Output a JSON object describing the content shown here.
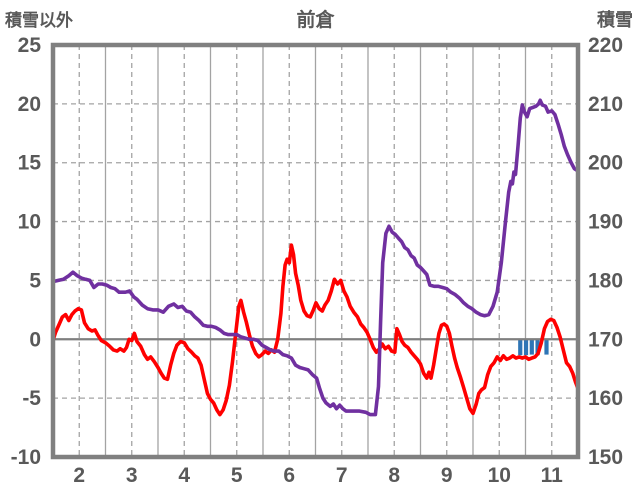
{
  "chart_data": {
    "type": "line",
    "title": "前倉",
    "colors": {
      "background": "#FFFFFF",
      "grid": "#A3A3A3",
      "axis_line": "#808080",
      "zero_line": "#7F7F7F",
      "text": "#595959",
      "series_red": "#FF0000",
      "series_purple": "#7030A0",
      "series_blue": "#2E75B6"
    },
    "left_axis": {
      "label": "積雪以外",
      "min": -10,
      "max": 25,
      "ticks": [
        25,
        20,
        15,
        10,
        5,
        0,
        -5,
        -10
      ],
      "dashed_gridlines": [
        20,
        15,
        10,
        5,
        -5
      ],
      "zero_line": 0
    },
    "right_axis": {
      "label": "積雪",
      "min": 150,
      "max": 220,
      "ticks": [
        220,
        210,
        200,
        190,
        180,
        170,
        160,
        150
      ]
    },
    "x_axis": {
      "min": 1.5,
      "max": 11.5,
      "ticks": [
        2,
        3,
        4,
        5,
        6,
        7,
        8,
        9,
        10,
        11
      ],
      "solid_gridlines": [
        2.5,
        3.5,
        4.5,
        5.5,
        6.5,
        7.5,
        8.5,
        9.5,
        10.5
      ]
    },
    "series": [
      {
        "name": "blue-bars",
        "kind": "bar",
        "axis": "left",
        "color": "#2E75B6",
        "bar_width_units": 0.08,
        "x": [
          10.4,
          10.51,
          10.62,
          10.73,
          10.9
        ],
        "y": [
          -1.35,
          -1.35,
          -1.3,
          -1.35,
          -1.3
        ]
      },
      {
        "name": "積雪以外",
        "kind": "line",
        "axis": "left",
        "color": "#FF0000",
        "x": [
          1.5,
          1.55,
          1.62,
          1.68,
          1.74,
          1.8,
          1.86,
          1.92,
          1.98,
          2.04,
          2.1,
          2.17,
          2.24,
          2.3,
          2.36,
          2.42,
          2.5,
          2.58,
          2.65,
          2.72,
          2.78,
          2.85,
          2.9,
          2.95,
          3.0,
          3.05,
          3.1,
          3.17,
          3.24,
          3.3,
          3.36,
          3.43,
          3.5,
          3.56,
          3.62,
          3.68,
          3.74,
          3.8,
          3.86,
          3.93,
          4.0,
          4.07,
          4.14,
          4.2,
          4.26,
          4.32,
          4.38,
          4.44,
          4.5,
          4.56,
          4.62,
          4.68,
          4.74,
          4.8,
          4.86,
          4.92,
          4.98,
          5.04,
          5.08,
          5.13,
          5.18,
          5.24,
          5.3,
          5.36,
          5.42,
          5.48,
          5.54,
          5.6,
          5.66,
          5.72,
          5.78,
          5.84,
          5.88,
          5.92,
          5.96,
          6.0,
          6.04,
          6.08,
          6.12,
          6.17,
          6.22,
          6.28,
          6.34,
          6.4,
          6.46,
          6.51,
          6.57,
          6.63,
          6.68,
          6.74,
          6.8,
          6.86,
          6.92,
          6.98,
          7.04,
          7.1,
          7.16,
          7.23,
          7.3,
          7.36,
          7.42,
          7.48,
          7.54,
          7.6,
          7.66,
          7.72,
          7.77,
          7.83,
          7.89,
          7.95,
          8.01,
          8.05,
          8.1,
          8.15,
          8.2,
          8.26,
          8.32,
          8.38,
          8.44,
          8.5,
          8.56,
          8.62,
          8.66,
          8.7,
          8.75,
          8.8,
          8.85,
          8.9,
          8.95,
          9.0,
          9.05,
          9.1,
          9.15,
          9.2,
          9.26,
          9.32,
          9.38,
          9.44,
          9.5,
          9.56,
          9.61,
          9.66,
          9.72,
          9.78,
          9.84,
          9.9,
          9.96,
          10.02,
          10.08,
          10.14,
          10.2,
          10.26,
          10.32,
          10.38,
          10.44,
          10.5,
          10.56,
          10.62,
          10.68,
          10.74,
          10.8,
          10.86,
          10.92,
          10.98,
          11.04,
          11.1,
          11.16,
          11.22,
          11.28,
          11.34,
          11.4,
          11.45,
          11.5
        ],
        "y": [
          -0.1,
          0.6,
          1.3,
          1.9,
          2.1,
          1.6,
          2.1,
          2.4,
          2.6,
          2.5,
          1.4,
          0.9,
          0.7,
          0.8,
          0.3,
          -0.1,
          -0.3,
          -0.6,
          -0.9,
          -1.0,
          -0.8,
          -1.0,
          -0.7,
          0.0,
          -0.1,
          0.5,
          -0.2,
          -0.6,
          -1.3,
          -1.7,
          -1.5,
          -1.9,
          -2.4,
          -2.9,
          -3.3,
          -3.4,
          -2.2,
          -1.2,
          -0.5,
          -0.2,
          -0.3,
          -0.8,
          -1.1,
          -1.4,
          -1.6,
          -2.2,
          -3.4,
          -4.6,
          -5.1,
          -5.4,
          -6.0,
          -6.4,
          -6.0,
          -5.2,
          -3.9,
          -1.9,
          0.5,
          2.8,
          3.3,
          2.3,
          1.5,
          0.4,
          -0.6,
          -1.2,
          -1.5,
          -1.3,
          -1.0,
          -1.2,
          -0.9,
          -1.1,
          0.0,
          2.2,
          4.5,
          6.3,
          6.8,
          6.5,
          8.0,
          7.2,
          5.6,
          4.6,
          3.3,
          2.4,
          2.0,
          1.9,
          2.5,
          3.1,
          2.6,
          2.4,
          2.9,
          3.3,
          4.1,
          5.1,
          4.7,
          5.0,
          4.1,
          3.6,
          2.8,
          2.3,
          1.9,
          1.3,
          1.0,
          0.6,
          0.0,
          -0.7,
          -1.1,
          -0.8,
          -0.4,
          -0.8,
          -0.6,
          -1.0,
          -1.1,
          0.9,
          0.4,
          -0.2,
          -0.5,
          -0.7,
          -1.1,
          -1.4,
          -1.7,
          -2.1,
          -2.9,
          -3.3,
          -2.8,
          -3.3,
          -2.2,
          -0.8,
          0.5,
          1.2,
          1.3,
          1.1,
          0.5,
          -0.6,
          -1.6,
          -2.4,
          -3.2,
          -4.1,
          -5.0,
          -5.9,
          -6.3,
          -5.5,
          -4.6,
          -4.3,
          -4.1,
          -3.0,
          -2.3,
          -2.0,
          -1.5,
          -1.8,
          -1.4,
          -1.7,
          -1.6,
          -1.4,
          -1.6,
          -1.5,
          -1.6,
          -1.5,
          -1.7,
          -1.6,
          -1.5,
          -1.2,
          -0.3,
          0.9,
          1.5,
          1.7,
          1.6,
          1.0,
          0.2,
          -0.9,
          -2.0,
          -2.3,
          -2.9,
          -3.6,
          -4.2
        ]
      },
      {
        "name": "積雪",
        "kind": "line",
        "axis": "right",
        "color": "#7030A0",
        "x": [
          1.5,
          1.6,
          1.7,
          1.8,
          1.88,
          1.96,
          2.04,
          2.12,
          2.2,
          2.28,
          2.36,
          2.44,
          2.52,
          2.6,
          2.68,
          2.76,
          2.88,
          2.96,
          3.04,
          3.1,
          3.2,
          3.3,
          3.4,
          3.5,
          3.6,
          3.7,
          3.8,
          3.88,
          3.96,
          4.04,
          4.12,
          4.2,
          4.28,
          4.36,
          4.44,
          4.52,
          4.6,
          4.68,
          4.76,
          4.84,
          4.92,
          5.0,
          5.08,
          5.16,
          5.24,
          5.32,
          5.4,
          5.48,
          5.56,
          5.64,
          5.72,
          5.8,
          5.88,
          5.96,
          6.04,
          6.12,
          6.2,
          6.28,
          6.36,
          6.44,
          6.52,
          6.58,
          6.64,
          6.7,
          6.78,
          6.84,
          6.9,
          6.96,
          7.02,
          7.08,
          7.2,
          7.34,
          7.46,
          7.54,
          7.64,
          7.7,
          7.74,
          7.78,
          7.84,
          7.9,
          7.96,
          8.02,
          8.08,
          8.14,
          8.2,
          8.26,
          8.32,
          8.38,
          8.44,
          8.5,
          8.56,
          8.62,
          8.68,
          8.76,
          8.84,
          8.92,
          9.0,
          9.08,
          9.16,
          9.24,
          9.32,
          9.4,
          9.48,
          9.56,
          9.64,
          9.72,
          9.8,
          9.88,
          9.96,
          10.04,
          10.12,
          10.18,
          10.22,
          10.25,
          10.28,
          10.31,
          10.36,
          10.4,
          10.44,
          10.48,
          10.53,
          10.58,
          10.64,
          10.7,
          10.75,
          10.78,
          10.82,
          10.88,
          10.93,
          11.0,
          11.06,
          11.12,
          11.18,
          11.24,
          11.3,
          11.37,
          11.43,
          11.5
        ],
        "y": [
          179.8,
          180.0,
          180.2,
          180.8,
          181.4,
          180.8,
          180.4,
          180.2,
          180.0,
          178.8,
          179.4,
          179.4,
          179.2,
          178.8,
          178.6,
          178.0,
          178.0,
          178.2,
          177.2,
          176.8,
          175.8,
          175.2,
          175.0,
          175.0,
          174.6,
          175.6,
          176.0,
          175.4,
          175.6,
          174.8,
          174.6,
          173.8,
          173.2,
          172.4,
          172.2,
          172.2,
          172.0,
          171.6,
          171.0,
          170.8,
          170.8,
          170.8,
          170.4,
          170.2,
          170.0,
          170.0,
          169.8,
          169.0,
          168.6,
          168.2,
          168.0,
          168.0,
          167.4,
          167.2,
          166.8,
          165.6,
          165.2,
          165.0,
          164.8,
          164.0,
          163.4,
          161.6,
          160.0,
          159.2,
          158.6,
          159.0,
          158.2,
          158.8,
          158.2,
          157.8,
          157.8,
          157.8,
          157.6,
          157.2,
          157.2,
          162.0,
          173.0,
          183.0,
          188.0,
          189.2,
          188.2,
          187.8,
          187.2,
          186.6,
          185.6,
          185.2,
          184.2,
          183.8,
          182.6,
          182.2,
          181.6,
          181.0,
          179.2,
          179.0,
          179.0,
          178.8,
          178.6,
          178.0,
          177.6,
          177.0,
          176.2,
          175.6,
          175.2,
          174.6,
          174.2,
          174.0,
          174.2,
          175.6,
          178.0,
          183.0,
          190.0,
          195.0,
          196.8,
          196.4,
          198.4,
          198.0,
          203.0,
          207.6,
          209.8,
          208.6,
          207.8,
          209.2,
          209.4,
          209.6,
          210.0,
          210.6,
          209.8,
          209.6,
          208.6,
          208.8,
          208.2,
          206.6,
          204.8,
          202.8,
          201.4,
          200.0,
          199.0,
          198.6
        ]
      }
    ]
  }
}
